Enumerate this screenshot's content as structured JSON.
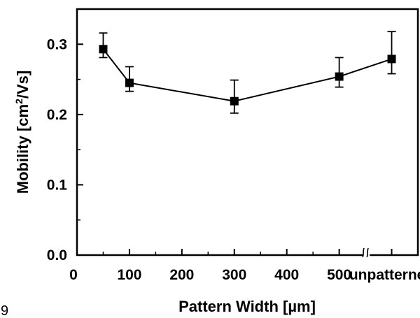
{
  "chart_data": {
    "type": "scatter",
    "xlabel": "Pattern Width [µm]",
    "ylabel_pre": "Mobility [cm",
    "ylabel_sup": "2",
    "ylabel_post": "/Vs]",
    "x_tick_labels": [
      "0",
      "100",
      "200",
      "300",
      "400",
      "500",
      "unpatterned"
    ],
    "x_tick_values": [
      0,
      100,
      200,
      300,
      400,
      500,
      600
    ],
    "y_tick_labels": [
      "0.0",
      "0.1",
      "0.2",
      "0.3"
    ],
    "y_tick_values": [
      0.0,
      0.1,
      0.2,
      0.3
    ],
    "xlim": [
      0,
      650
    ],
    "ylim": [
      0.0,
      0.35
    ],
    "axis_break": "between 500 and unpatterned",
    "grid": false,
    "series": [
      {
        "x": [
          50,
          100,
          300,
          500,
          600
        ],
        "x_labels": [
          "50",
          "100",
          "300",
          "500",
          "unpatterned"
        ],
        "y": [
          0.293,
          0.245,
          0.219,
          0.254,
          0.279
        ],
        "y_err_low": [
          0.281,
          0.233,
          0.202,
          0.239,
          0.258
        ],
        "y_err_high": [
          0.316,
          0.268,
          0.249,
          0.281,
          0.318
        ],
        "marker": "square",
        "color": "#000000"
      }
    ]
  },
  "corner_label": "9"
}
